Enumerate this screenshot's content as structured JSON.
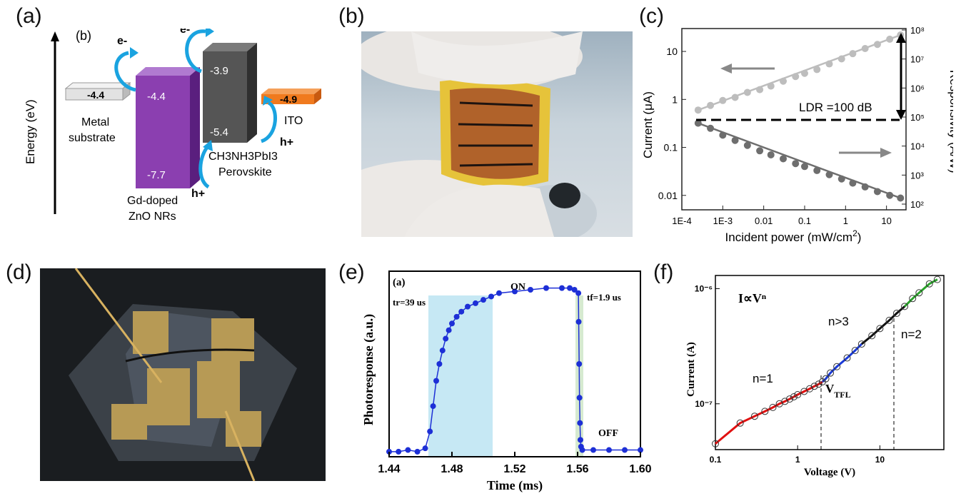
{
  "panels": {
    "a": {
      "label": "(a)"
    },
    "b": {
      "label": "(b)"
    },
    "c": {
      "label": "(c)"
    },
    "d": {
      "label": "(d)"
    },
    "e": {
      "label": "(e)"
    },
    "f": {
      "label": "(f)"
    }
  },
  "diagram_a": {
    "inner_label": "(b)",
    "axis_label": "Energy (eV)",
    "metal_level": "-4.4",
    "metal_name_1": "Metal",
    "metal_name_2": "substrate",
    "zno_top": "-4.4",
    "zno_bottom": "-7.7",
    "zno_name_1": "Gd-doped",
    "zno_name_2": "ZnO NRs",
    "perov_top": "-3.9",
    "perov_bottom": "-5.4",
    "perov_name_1": "CH3NH3PbI3",
    "perov_name_2": "Perovskite",
    "ito_level": "-4.9",
    "ito_name": "ITO",
    "electron": "e-",
    "hole": "h+",
    "colors": {
      "metal": "#e2e2e2",
      "zno": "#8b3fb0",
      "perov": "#555555",
      "ito": "#f07a1e",
      "arrow": "#1aa3e0"
    }
  },
  "chart_data": [
    {
      "type": "scatter",
      "panel": "c",
      "xlabel": "Incident power (mW/cm2)",
      "ylabel": "Current (μA)",
      "ylabel_right": "Responsivity (A/W)",
      "xscale": "log",
      "yscale": "log",
      "xlim": [
        0.0001,
        30
      ],
      "ylim": [
        0.005,
        30
      ],
      "xticks": [
        "1E-4",
        "1E-3",
        "0.01",
        "0.1",
        "1",
        "10"
      ],
      "yticks_left": [
        "0.01",
        "0.1",
        "1",
        "10"
      ],
      "yticks_right": [
        "10²",
        "10³",
        "10⁴",
        "10⁵",
        "10⁶",
        "10⁷",
        "10⁸"
      ],
      "annotation": "LDR =100 dB",
      "series": [
        {
          "color": "#bdbdbd",
          "x": [
            0.00025,
            0.0005,
            0.001,
            0.002,
            0.004,
            0.008,
            0.015,
            0.03,
            0.06,
            0.1,
            0.2,
            0.4,
            0.8,
            1.5,
            3,
            6,
            12,
            22
          ],
          "y": [
            0.6,
            0.75,
            0.95,
            1.1,
            1.4,
            1.6,
            1.9,
            2.4,
            3.0,
            3.5,
            4.2,
            5.5,
            7.0,
            9.0,
            11.5,
            14,
            18,
            22
          ]
        },
        {
          "color": "#6e6e6e",
          "x": [
            0.00025,
            0.0005,
            0.001,
            0.002,
            0.004,
            0.008,
            0.015,
            0.03,
            0.06,
            0.1,
            0.2,
            0.4,
            0.8,
            1.5,
            3,
            6,
            12,
            22
          ],
          "y": [
            0.32,
            0.25,
            0.18,
            0.14,
            0.11,
            0.085,
            0.07,
            0.058,
            0.046,
            0.04,
            0.033,
            0.027,
            0.022,
            0.018,
            0.015,
            0.012,
            0.01,
            0.0088
          ]
        }
      ]
    },
    {
      "type": "line",
      "panel": "e",
      "inner_label": "(a)",
      "xlabel": "Time (ms)",
      "ylabel": "Photoresponse (a.u.)",
      "xlim": [
        1.44,
        1.6
      ],
      "ylim": [
        0,
        1.1
      ],
      "xticks": [
        "1.44",
        "1.48",
        "1.52",
        "1.56",
        "1.60"
      ],
      "annotations": {
        "rise": "tr=39 us",
        "fall": "tf=1.9 us",
        "on": "ON",
        "off": "OFF"
      },
      "series": [
        {
          "color": "#1d2fd6",
          "x": [
            1.44,
            1.446,
            1.452,
            1.458,
            1.463,
            1.466,
            1.468,
            1.47,
            1.472,
            1.474,
            1.476,
            1.478,
            1.48,
            1.483,
            1.486,
            1.49,
            1.495,
            1.5,
            1.505,
            1.51,
            1.52,
            1.53,
            1.54,
            1.55,
            1.555,
            1.558,
            1.5605,
            1.5607,
            1.561,
            1.5612,
            1.5615,
            1.5618,
            1.5622,
            1.563,
            1.57,
            1.58,
            1.59,
            1.6
          ],
          "y": [
            0.03,
            0.03,
            0.04,
            0.03,
            0.05,
            0.15,
            0.3,
            0.45,
            0.55,
            0.63,
            0.7,
            0.75,
            0.79,
            0.83,
            0.86,
            0.89,
            0.91,
            0.93,
            0.95,
            0.97,
            0.98,
            0.99,
            1.0,
            1.0,
            1.0,
            0.99,
            0.97,
            0.8,
            0.55,
            0.35,
            0.2,
            0.1,
            0.06,
            0.04,
            0.04,
            0.04,
            0.04,
            0.04
          ]
        }
      ]
    },
    {
      "type": "scatter",
      "panel": "f",
      "xlabel": "Voltage (V)",
      "ylabel": "Current (A)",
      "xscale": "log",
      "yscale": "log",
      "xlim": [
        0.1,
        60
      ],
      "ylim": [
        4e-08,
        1.3e-06
      ],
      "xticks": [
        "0.1",
        "1",
        "10"
      ],
      "yticks": [
        "10⁻⁷",
        "10⁻⁶"
      ],
      "title": "I∝Vⁿ",
      "annotations": {
        "n1": "n=1",
        "n3": "n>3",
        "n2": "n=2",
        "vtfl": "VTFL"
      },
      "series": [
        {
          "color": "#000000",
          "x": [
            0.1,
            0.2,
            0.3,
            0.4,
            0.5,
            0.6,
            0.7,
            0.8,
            0.9,
            1.0,
            1.2,
            1.4,
            1.6,
            1.8,
            2.0,
            2.2,
            2.5,
            3,
            4,
            5,
            6,
            8,
            10,
            13,
            16,
            20,
            25,
            30,
            40,
            50
          ],
          "y": [
            4.5e-08,
            6.8e-08,
            7.8e-08,
            8.6e-08,
            9.3e-08,
            1e-07,
            1.05e-07,
            1.1e-07,
            1.15e-07,
            1.2e-07,
            1.28e-07,
            1.35e-07,
            1.42e-07,
            1.48e-07,
            1.55e-07,
            1.65e-07,
            1.85e-07,
            2.1e-07,
            2.5e-07,
            2.9e-07,
            3.3e-07,
            3.9e-07,
            4.5e-07,
            5.3e-07,
            6.1e-07,
            7e-07,
            8.2e-07,
            9.2e-07,
            1.1e-06,
            1.2e-06
          ]
        }
      ]
    }
  ]
}
